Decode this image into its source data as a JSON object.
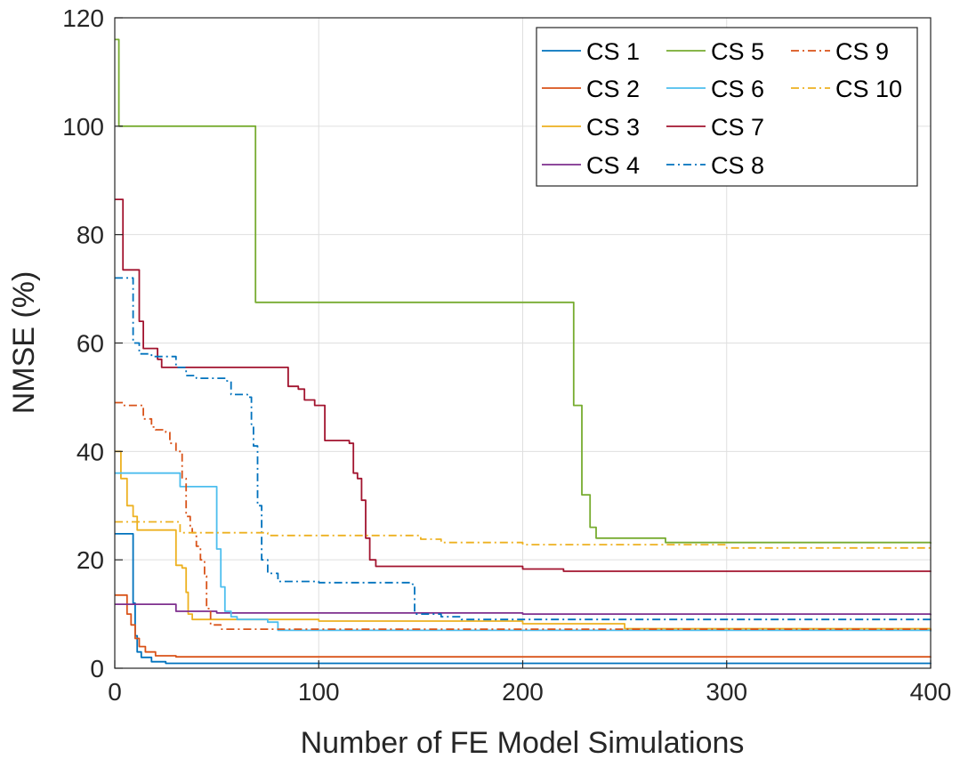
{
  "chart_data": {
    "type": "line",
    "xlabel": "Number of FE Model Simulations",
    "ylabel": "NMSE (%)",
    "xlim": [
      0,
      400
    ],
    "ylim": [
      0,
      120
    ],
    "xticks": [
      0,
      100,
      200,
      300,
      400
    ],
    "yticks": [
      0,
      20,
      40,
      60,
      80,
      100,
      120
    ],
    "xtick_labels": [
      "0",
      "100",
      "200",
      "300",
      "400"
    ],
    "ytick_labels": [
      "0",
      "20",
      "40",
      "60",
      "80",
      "100",
      "120"
    ],
    "grid": true,
    "legend_position": "top-right",
    "series": [
      {
        "name": "CS 1",
        "color": "#0072BD",
        "dash": "solid",
        "points": [
          [
            0,
            24.8
          ],
          [
            8,
            24.8
          ],
          [
            9,
            12
          ],
          [
            10,
            6
          ],
          [
            11,
            3
          ],
          [
            13,
            2
          ],
          [
            18,
            1.2
          ],
          [
            25,
            0.9
          ],
          [
            400,
            0.8
          ]
        ]
      },
      {
        "name": "CS 2",
        "color": "#D95319",
        "dash": "solid",
        "points": [
          [
            0,
            13.5
          ],
          [
            4,
            13.5
          ],
          [
            6,
            10
          ],
          [
            8,
            8
          ],
          [
            10,
            5.5
          ],
          [
            12,
            4
          ],
          [
            15,
            3
          ],
          [
            20,
            2.3
          ],
          [
            30,
            2.1
          ],
          [
            400,
            2.0
          ]
        ]
      },
      {
        "name": "CS 3",
        "color": "#EDB120",
        "dash": "solid",
        "points": [
          [
            0,
            40
          ],
          [
            3,
            35
          ],
          [
            6,
            30
          ],
          [
            9,
            28
          ],
          [
            11,
            25.5
          ],
          [
            28,
            25.5
          ],
          [
            30,
            19
          ],
          [
            33,
            18.5
          ],
          [
            35,
            14
          ],
          [
            36,
            10
          ],
          [
            38,
            9
          ],
          [
            100,
            8.7
          ],
          [
            200,
            8.2
          ],
          [
            250,
            7.3
          ],
          [
            400,
            7.0
          ]
        ]
      },
      {
        "name": "CS 4",
        "color": "#7E2F8E",
        "dash": "solid",
        "points": [
          [
            0,
            11.8
          ],
          [
            28,
            11.8
          ],
          [
            30,
            10.5
          ],
          [
            50,
            10.2
          ],
          [
            200,
            10.0
          ],
          [
            400,
            9.8
          ]
        ]
      },
      {
        "name": "CS 5",
        "color": "#77AC30",
        "dash": "solid",
        "points": [
          [
            0,
            116
          ],
          [
            2,
            100
          ],
          [
            68,
            100
          ],
          [
            69,
            67.5
          ],
          [
            222,
            67.5
          ],
          [
            225,
            48.5
          ],
          [
            228,
            48.5
          ],
          [
            229,
            32
          ],
          [
            231,
            32
          ],
          [
            233,
            26
          ],
          [
            236,
            24
          ],
          [
            270,
            23.2
          ],
          [
            400,
            23.0
          ]
        ]
      },
      {
        "name": "CS 6",
        "color": "#4DBEEE",
        "dash": "solid",
        "points": [
          [
            0,
            36
          ],
          [
            30,
            36
          ],
          [
            32,
            33.5
          ],
          [
            48,
            33.5
          ],
          [
            50,
            22
          ],
          [
            52,
            15
          ],
          [
            54,
            10.5
          ],
          [
            57,
            9.5
          ],
          [
            60,
            9
          ],
          [
            75,
            8.5
          ],
          [
            80,
            7
          ],
          [
            400,
            6.8
          ]
        ]
      },
      {
        "name": "CS 7",
        "color": "#A2142F",
        "dash": "solid",
        "points": [
          [
            0,
            86.5
          ],
          [
            3,
            86.5
          ],
          [
            4,
            73.5
          ],
          [
            10,
            73.5
          ],
          [
            12,
            64
          ],
          [
            14,
            59
          ],
          [
            20,
            59
          ],
          [
            21,
            57
          ],
          [
            23,
            55.5
          ],
          [
            84,
            55.5
          ],
          [
            85,
            52
          ],
          [
            90,
            51.5
          ],
          [
            93,
            49.5
          ],
          [
            98,
            48.5
          ],
          [
            102,
            48.5
          ],
          [
            103,
            42
          ],
          [
            115,
            41.5
          ],
          [
            117,
            36
          ],
          [
            119,
            35
          ],
          [
            121,
            31
          ],
          [
            123,
            24
          ],
          [
            125,
            20
          ],
          [
            128,
            18.8
          ],
          [
            200,
            18.3
          ],
          [
            220,
            17.9
          ],
          [
            400,
            17.8
          ]
        ]
      },
      {
        "name": "CS 8",
        "color": "#0072BD",
        "dash": "dashdot",
        "points": [
          [
            0,
            72
          ],
          [
            7,
            72
          ],
          [
            9,
            60
          ],
          [
            12,
            58
          ],
          [
            18,
            57.5
          ],
          [
            30,
            55.5
          ],
          [
            35,
            54
          ],
          [
            40,
            53.5
          ],
          [
            55,
            53
          ],
          [
            57,
            50.5
          ],
          [
            65,
            50
          ],
          [
            67,
            45
          ],
          [
            68,
            41
          ],
          [
            70,
            30
          ],
          [
            72,
            20
          ],
          [
            75,
            17.5
          ],
          [
            80,
            16
          ],
          [
            100,
            15.8
          ],
          [
            146,
            15.5
          ],
          [
            147,
            10
          ],
          [
            160,
            9.5
          ],
          [
            170,
            9
          ],
          [
            400,
            8.8
          ]
        ]
      },
      {
        "name": "CS 9",
        "color": "#D95319",
        "dash": "dashdot",
        "points": [
          [
            0,
            49
          ],
          [
            3,
            49
          ],
          [
            4,
            48.5
          ],
          [
            10,
            48.5
          ],
          [
            14,
            46
          ],
          [
            18,
            44.5
          ],
          [
            20,
            44
          ],
          [
            25,
            43.5
          ],
          [
            27,
            41.5
          ],
          [
            30,
            40
          ],
          [
            33,
            35
          ],
          [
            35,
            28
          ],
          [
            37,
            26
          ],
          [
            38,
            25
          ],
          [
            40,
            22.5
          ],
          [
            42,
            20
          ],
          [
            44,
            17
          ],
          [
            45,
            11
          ],
          [
            47,
            8
          ],
          [
            52,
            7.2
          ],
          [
            400,
            7.0
          ]
        ]
      },
      {
        "name": "CS 10",
        "color": "#EDB120",
        "dash": "dashdot",
        "points": [
          [
            0,
            27
          ],
          [
            30,
            27
          ],
          [
            32,
            25
          ],
          [
            70,
            25
          ],
          [
            75,
            24.5
          ],
          [
            150,
            23.8
          ],
          [
            160,
            23.2
          ],
          [
            200,
            22.8
          ],
          [
            300,
            22.2
          ],
          [
            400,
            21.8
          ]
        ]
      }
    ]
  }
}
